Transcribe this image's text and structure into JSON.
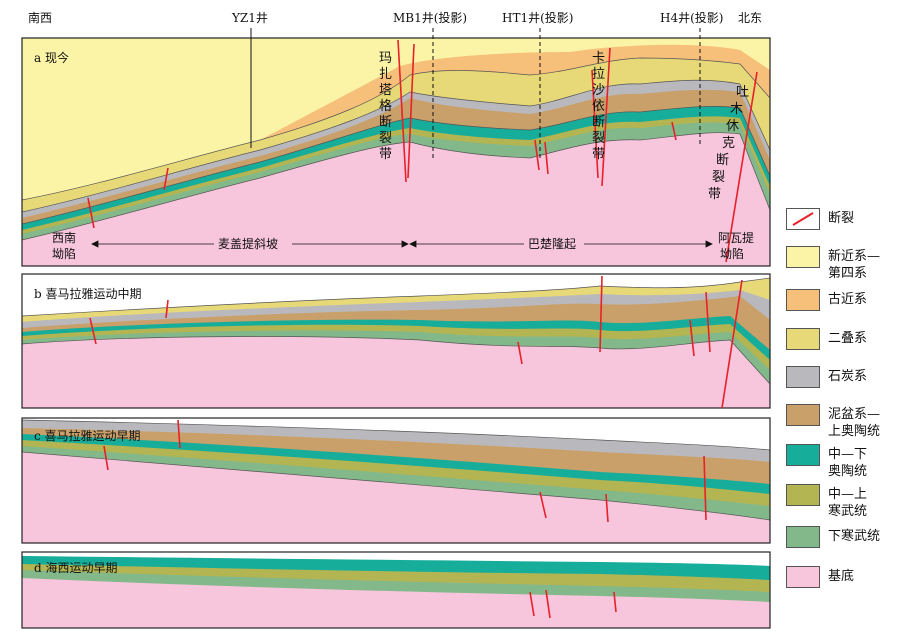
{
  "directions": {
    "left": "南西",
    "right": "北东"
  },
  "wells": [
    "YZ1井",
    "MB1井(投影)",
    "HT1井(投影)",
    "H4井(投影)"
  ],
  "panels": [
    {
      "label": "a 现今"
    },
    {
      "label": "b 喜马拉雅运动中期"
    },
    {
      "label": "c 喜马拉雅运动早期"
    },
    {
      "label": "d 海西运动早期"
    }
  ],
  "fault_zones": [
    {
      "name": "玛扎塔格断裂带",
      "chars": [
        "玛",
        "扎",
        "塔",
        "格",
        "断",
        "裂",
        "带"
      ]
    },
    {
      "name": "卡拉沙依断裂带",
      "chars": [
        "卡",
        "拉",
        "沙",
        "依",
        "断",
        "裂",
        "带"
      ]
    },
    {
      "name": "吐木休克断裂带",
      "chars": [
        "吐",
        "木",
        "休",
        "克",
        "断",
        "裂",
        "带"
      ]
    }
  ],
  "units": {
    "southwest_depression": [
      "西南",
      "坳陷"
    ],
    "slope": "麦盖提斜坡",
    "uplift": "巴楚隆起",
    "awati": [
      "阿瓦提",
      "坳陷"
    ]
  },
  "legend": [
    {
      "label": "断裂",
      "kind": "fault",
      "color": "#e8202a"
    },
    {
      "label": "新近系—第四系",
      "lines": [
        "新近系—",
        "第四系"
      ],
      "color": "#fbf3a6"
    },
    {
      "label": "古近系",
      "color": "#f7c07a"
    },
    {
      "label": "二叠系",
      "color": "#e7d878"
    },
    {
      "label": "石炭系",
      "color": "#b9b9bd"
    },
    {
      "label": "泥盆系—上奥陶统",
      "lines": [
        "泥盆系—",
        "上奥陶统"
      ],
      "color": "#c9a06a"
    },
    {
      "label": "中—下奥陶统",
      "lines": [
        "中—下",
        "奥陶统"
      ],
      "color": "#16ad9a"
    },
    {
      "label": "中—上寒武统",
      "lines": [
        "中—上",
        "寒武统"
      ],
      "color": "#b3b452"
    },
    {
      "label": "下寒武统",
      "color": "#83b98a"
    },
    {
      "label": "基底",
      "color": "#f7c5dc"
    }
  ]
}
